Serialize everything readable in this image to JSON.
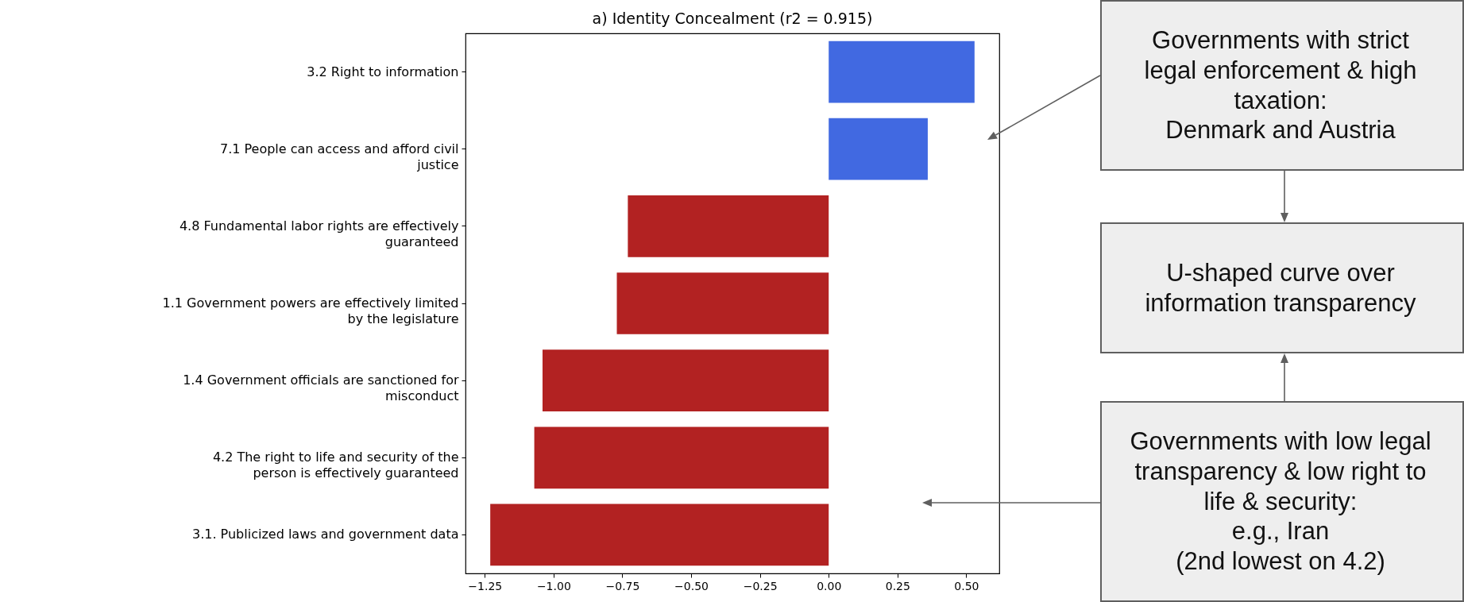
{
  "chart_data": {
    "type": "bar",
    "orientation": "horizontal",
    "title": "a) Identity Concealment (r2 = 0.915)",
    "categories": [
      "3.2 Right to information",
      "7.1 People can access and afford civil justice",
      "4.8 Fundamental labor rights are effectively guaranteed",
      "1.1 Government powers are effectively limited by the legislature",
      "1.4 Government officials are sanctioned for misconduct",
      "4.2 The right to life and security of the person is effectively guaranteed",
      "3.1. Publicized laws and government data"
    ],
    "values": [
      0.53,
      0.36,
      -0.73,
      -0.77,
      -1.04,
      -1.07,
      -1.23
    ],
    "colors": [
      "#4169e1",
      "#4169e1",
      "#b22222",
      "#b22222",
      "#b22222",
      "#b22222",
      "#b22222"
    ],
    "xlim": [
      -1.32,
      0.62
    ],
    "xticks": [
      {
        "value": -1.25,
        "label": "−1.25"
      },
      {
        "value": -1.0,
        "label": "−1.00"
      },
      {
        "value": -0.75,
        "label": "−0.75"
      },
      {
        "value": -0.5,
        "label": "−0.50"
      },
      {
        "value": -0.25,
        "label": "−0.25"
      },
      {
        "value": 0,
        "label": "0.00"
      },
      {
        "value": 0.25,
        "label": "0.25"
      },
      {
        "value": 0.5,
        "label": "0.50"
      }
    ],
    "grid": false,
    "annotations": [
      "Governments with strict legal enforcement & high taxation:\nDenmark and Austria",
      "U-shaped curve over information transparency",
      "Governments with low legal transparency & low right to life & security:\ne.g., Iran\n(2nd lowest on 4.2)"
    ]
  }
}
